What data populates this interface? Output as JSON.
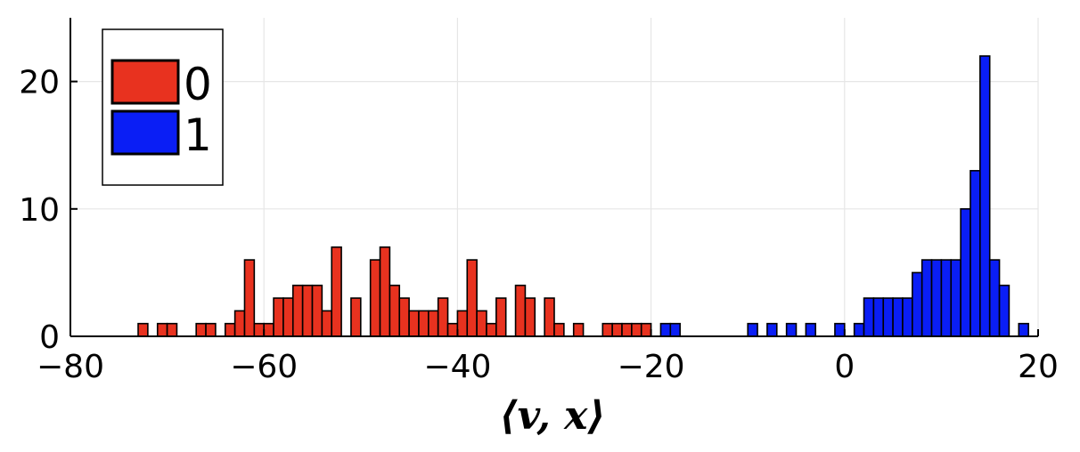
{
  "chart_data": {
    "type": "bar",
    "title": "",
    "xlabel": "⟨v, x⟩",
    "ylabel": "",
    "xlim": [
      -80,
      20
    ],
    "ylim": [
      0,
      25
    ],
    "grid": true,
    "legend_position": "top-left",
    "bin_width": 1,
    "x_ticks": [
      -80,
      -60,
      -40,
      -20,
      0,
      20
    ],
    "x_tick_labels": [
      "−80",
      "−60",
      "−40",
      "−20",
      "0",
      "20"
    ],
    "y_ticks": [
      0,
      10,
      20
    ],
    "y_tick_labels": [
      "0",
      "10",
      "20"
    ],
    "series": [
      {
        "name": "0",
        "color": "#e8321f",
        "bins": [
          [
            -73,
            1
          ],
          [
            -71,
            1
          ],
          [
            -70,
            1
          ],
          [
            -67,
            1
          ],
          [
            -66,
            1
          ],
          [
            -64,
            1
          ],
          [
            -63,
            2
          ],
          [
            -62,
            6
          ],
          [
            -61,
            1
          ],
          [
            -60,
            1
          ],
          [
            -59,
            3
          ],
          [
            -58,
            3
          ],
          [
            -57,
            4
          ],
          [
            -56,
            4
          ],
          [
            -55,
            4
          ],
          [
            -54,
            2
          ],
          [
            -53,
            7
          ],
          [
            -51,
            3
          ],
          [
            -49,
            6
          ],
          [
            -48,
            7
          ],
          [
            -47,
            4
          ],
          [
            -46,
            3
          ],
          [
            -45,
            2
          ],
          [
            -44,
            2
          ],
          [
            -43,
            2
          ],
          [
            -42,
            3
          ],
          [
            -41,
            1
          ],
          [
            -40,
            2
          ],
          [
            -39,
            6
          ],
          [
            -38,
            2
          ],
          [
            -37,
            1
          ],
          [
            -36,
            3
          ],
          [
            -34,
            4
          ],
          [
            -33,
            3
          ],
          [
            -31,
            3
          ],
          [
            -30,
            1
          ],
          [
            -28,
            1
          ],
          [
            -25,
            1
          ],
          [
            -24,
            1
          ],
          [
            -23,
            1
          ],
          [
            -22,
            1
          ],
          [
            -21,
            1
          ]
        ]
      },
      {
        "name": "1",
        "color": "#0a1ef5",
        "bins": [
          [
            -19,
            1
          ],
          [
            -18,
            1
          ],
          [
            -10,
            1
          ],
          [
            -8,
            1
          ],
          [
            -6,
            1
          ],
          [
            -4,
            1
          ],
          [
            -1,
            1
          ],
          [
            1,
            1
          ],
          [
            2,
            3
          ],
          [
            3,
            3
          ],
          [
            4,
            3
          ],
          [
            5,
            3
          ],
          [
            6,
            3
          ],
          [
            7,
            5
          ],
          [
            8,
            6
          ],
          [
            9,
            6
          ],
          [
            10,
            6
          ],
          [
            11,
            6
          ],
          [
            12,
            10
          ],
          [
            13,
            13
          ],
          [
            14,
            22
          ],
          [
            15,
            6
          ],
          [
            16,
            4
          ],
          [
            18,
            1
          ]
        ]
      }
    ]
  }
}
